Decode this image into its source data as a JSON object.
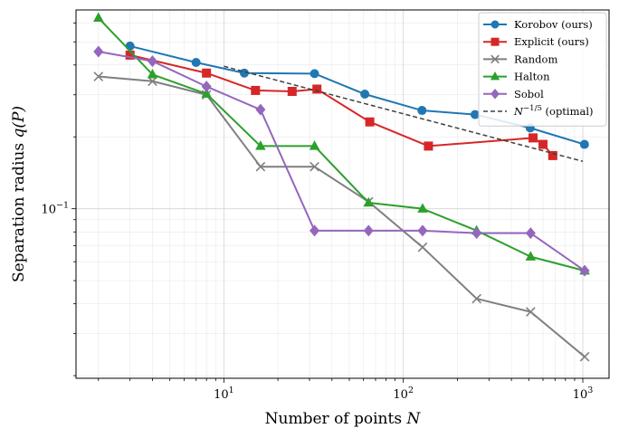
{
  "chart_data": {
    "type": "line",
    "xscale": "log",
    "yscale": "log",
    "xlim": [
      1.5,
      1400
    ],
    "ylim": [
      0.0195,
      0.68
    ],
    "xlabel": "Number of points N",
    "ylabel": "Separation radius q(P)",
    "x_ticks": [
      {
        "value": 10,
        "base": "10",
        "exp": "1"
      },
      {
        "value": 100,
        "base": "10",
        "exp": "2"
      },
      {
        "value": 1000,
        "base": "10",
        "exp": "3"
      }
    ],
    "y_ticks": [
      {
        "value": 0.1,
        "base": "10",
        "exp": "−1"
      }
    ],
    "grid": true,
    "legend_position": "top-right",
    "series": [
      {
        "name": "Korobov (ours)",
        "color": "#1f77b4",
        "marker": "circle",
        "x": [
          3,
          7,
          13,
          32,
          61,
          127,
          251,
          509,
          1021
        ],
        "y": [
          0.48,
          0.41,
          0.37,
          0.368,
          0.302,
          0.258,
          0.248,
          0.218,
          0.186
        ]
      },
      {
        "name": "Explicit (ours)",
        "color": "#d62728",
        "marker": "square",
        "x": [
          3,
          8,
          15,
          24,
          33,
          65,
          138,
          528,
          600,
          680
        ],
        "y": [
          0.44,
          0.37,
          0.313,
          0.31,
          0.317,
          0.231,
          0.183,
          0.198,
          0.186,
          0.167
        ]
      },
      {
        "name": "Random",
        "color": "#7f7f7f",
        "marker": "x",
        "x": [
          2,
          4,
          8,
          16,
          32,
          64,
          128,
          256,
          512,
          1024
        ],
        "y": [
          0.358,
          0.342,
          0.3,
          0.15,
          0.15,
          0.107,
          0.069,
          0.042,
          0.037,
          0.024
        ]
      },
      {
        "name": "Halton",
        "color": "#2ca02c",
        "marker": "triangle",
        "x": [
          2,
          4,
          8,
          16,
          32,
          64,
          128,
          256,
          512,
          1024
        ],
        "y": [
          0.63,
          0.365,
          0.303,
          0.183,
          0.183,
          0.106,
          0.1,
          0.081,
          0.063,
          0.055
        ]
      },
      {
        "name": "Sobol",
        "color": "#9467bd",
        "marker": "diamond",
        "x": [
          2,
          4,
          8,
          16,
          32,
          64,
          128,
          256,
          512,
          1024
        ],
        "y": [
          0.455,
          0.415,
          0.325,
          0.26,
          0.081,
          0.081,
          0.081,
          0.079,
          0.079,
          0.055
        ]
      },
      {
        "name": "N^{-1/5} (optimal)",
        "legend_base": "N",
        "legend_exp": "−1/5",
        "legend_suffix": " (optimal)",
        "color": "#404040",
        "marker": "none",
        "dashed": true,
        "x": [
          10,
          1000
        ],
        "y": [
          0.395,
          0.158
        ]
      }
    ]
  }
}
